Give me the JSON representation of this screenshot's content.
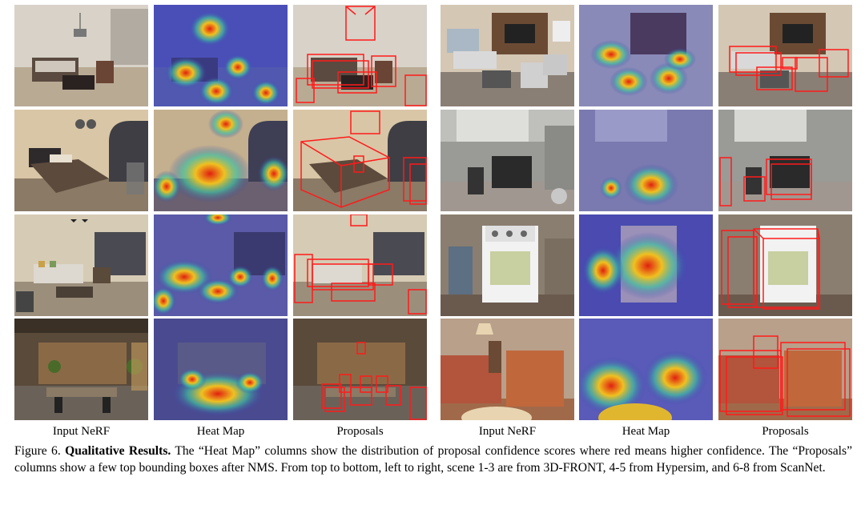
{
  "columns": {
    "left": [
      "Input NeRF",
      "Heat Map",
      "Proposals"
    ],
    "right": [
      "Input NeRF",
      "Heat Map",
      "Proposals"
    ]
  },
  "caption": {
    "label": "Figure 6.",
    "title": "Qualitative Results.",
    "text": " The “Heat Map” columns show the distribution of proposal confidence scores where red means higher confidence. The “Proposals” columns show a few top bounding boxes after NMS. From top to bottom, left to right, scene 1-3 are from 3D-FRONT, 4-5 from Hypersim, and 6-8 from ScanNet."
  },
  "colors": {
    "box": "#ff1a1a",
    "heat_base": "#3b3fb0",
    "heat_hot": "#e02010"
  },
  "scenes": [
    {
      "id": 1,
      "wall": "#d8d2c8",
      "floor": "#b9aa94",
      "furniture": "#5a4a40",
      "accent": "#2a2220"
    },
    {
      "id": 2,
      "wall": "#d9c6a6",
      "floor": "#8a7a66",
      "furniture": "#5c4a3c",
      "accent": "#2e2a2c"
    },
    {
      "id": 3,
      "wall": "#d6cbb4",
      "floor": "#9b8f7c",
      "furniture": "#ddd8d0",
      "accent": "#4a4a52"
    },
    {
      "id": 4,
      "wall": "#5a4a3a",
      "floor": "#6a6258",
      "furniture": "#8a7a66",
      "accent": "#c8a060"
    },
    {
      "id": 5,
      "wall": "#d4c7b4",
      "floor": "#8a7f74",
      "furniture": "#d9d9d9",
      "accent": "#6b4a34"
    },
    {
      "id": 6,
      "wall": "#9a9a96",
      "floor": "#a09890",
      "furniture": "#2a2a2a",
      "accent": "#c8c8c8"
    },
    {
      "id": 7,
      "wall": "#8a7e70",
      "floor": "#6a5a4e",
      "furniture": "#f2f2f2",
      "accent": "#4a6a8a"
    },
    {
      "id": 8,
      "wall": "#b8a08a",
      "floor": "#a06a4a",
      "furniture": "#b3543c",
      "accent": "#e8d4b0"
    }
  ]
}
